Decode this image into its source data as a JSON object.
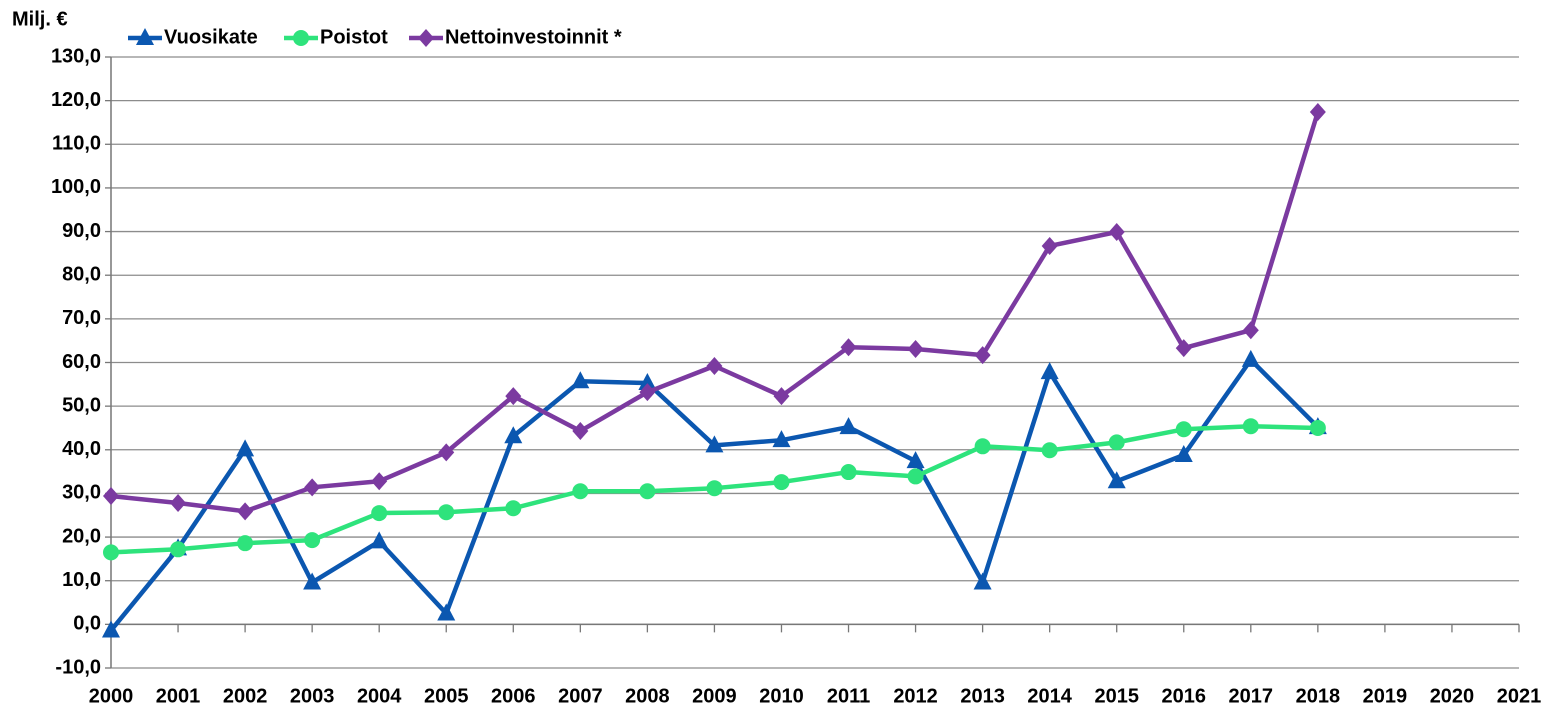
{
  "chart_data": {
    "type": "line",
    "y_label": "Milj. €",
    "categories": [
      "2000",
      "2001",
      "2002",
      "2003",
      "2004",
      "2005",
      "2006",
      "2007",
      "2008",
      "2009",
      "2010",
      "2011",
      "2012",
      "2013",
      "2014",
      "2015",
      "2016",
      "2017",
      "2018",
      "2019",
      "2020",
      "2021"
    ],
    "series": [
      {
        "name": "Vuosikate",
        "color": "#0b57b0",
        "marker": "triangle",
        "values": [
          -1.4,
          17.4,
          40.1,
          9.6,
          19.0,
          2.5,
          43.1,
          55.7,
          55.3,
          41.0,
          42.2,
          45.2,
          37.4,
          9.6,
          57.8,
          32.8,
          38.8,
          60.6,
          45.2,
          null,
          null,
          null
        ]
      },
      {
        "name": "Poistot",
        "color": "#2ee37c",
        "marker": "circle",
        "values": [
          16.5,
          17.2,
          18.6,
          19.3,
          25.5,
          25.7,
          26.6,
          30.5,
          30.5,
          31.2,
          32.6,
          34.9,
          33.9,
          40.8,
          39.9,
          41.7,
          44.7,
          45.4,
          45.0,
          null,
          null,
          null
        ]
      },
      {
        "name": "Nettoinvestoinnit *",
        "color": "#7b3aa0",
        "marker": "diamond",
        "values": [
          29.4,
          27.8,
          25.9,
          31.4,
          32.8,
          39.4,
          52.3,
          44.3,
          53.2,
          59.2,
          52.3,
          63.5,
          63.1,
          61.7,
          86.7,
          89.9,
          63.3,
          67.4,
          117.4,
          null,
          null,
          null
        ]
      }
    ],
    "ylim": [
      -10,
      130
    ],
    "yticks": [
      {
        "value": -10,
        "label": "-10,0"
      },
      {
        "value": 0,
        "label": "0,0"
      },
      {
        "value": 10,
        "label": "10,0"
      },
      {
        "value": 20,
        "label": "20,0"
      },
      {
        "value": 30,
        "label": "30,0"
      },
      {
        "value": 40,
        "label": "40,0"
      },
      {
        "value": 50,
        "label": "50,0"
      },
      {
        "value": 60,
        "label": "60,0"
      },
      {
        "value": 70,
        "label": "70,0"
      },
      {
        "value": 80,
        "label": "80,0"
      },
      {
        "value": 90,
        "label": "90,0"
      },
      {
        "value": 100,
        "label": "100,0"
      },
      {
        "value": 110,
        "label": "110,0"
      },
      {
        "value": 120,
        "label": "120,0"
      },
      {
        "value": 130,
        "label": "130,0"
      }
    ],
    "grid": true,
    "legend": "top"
  }
}
